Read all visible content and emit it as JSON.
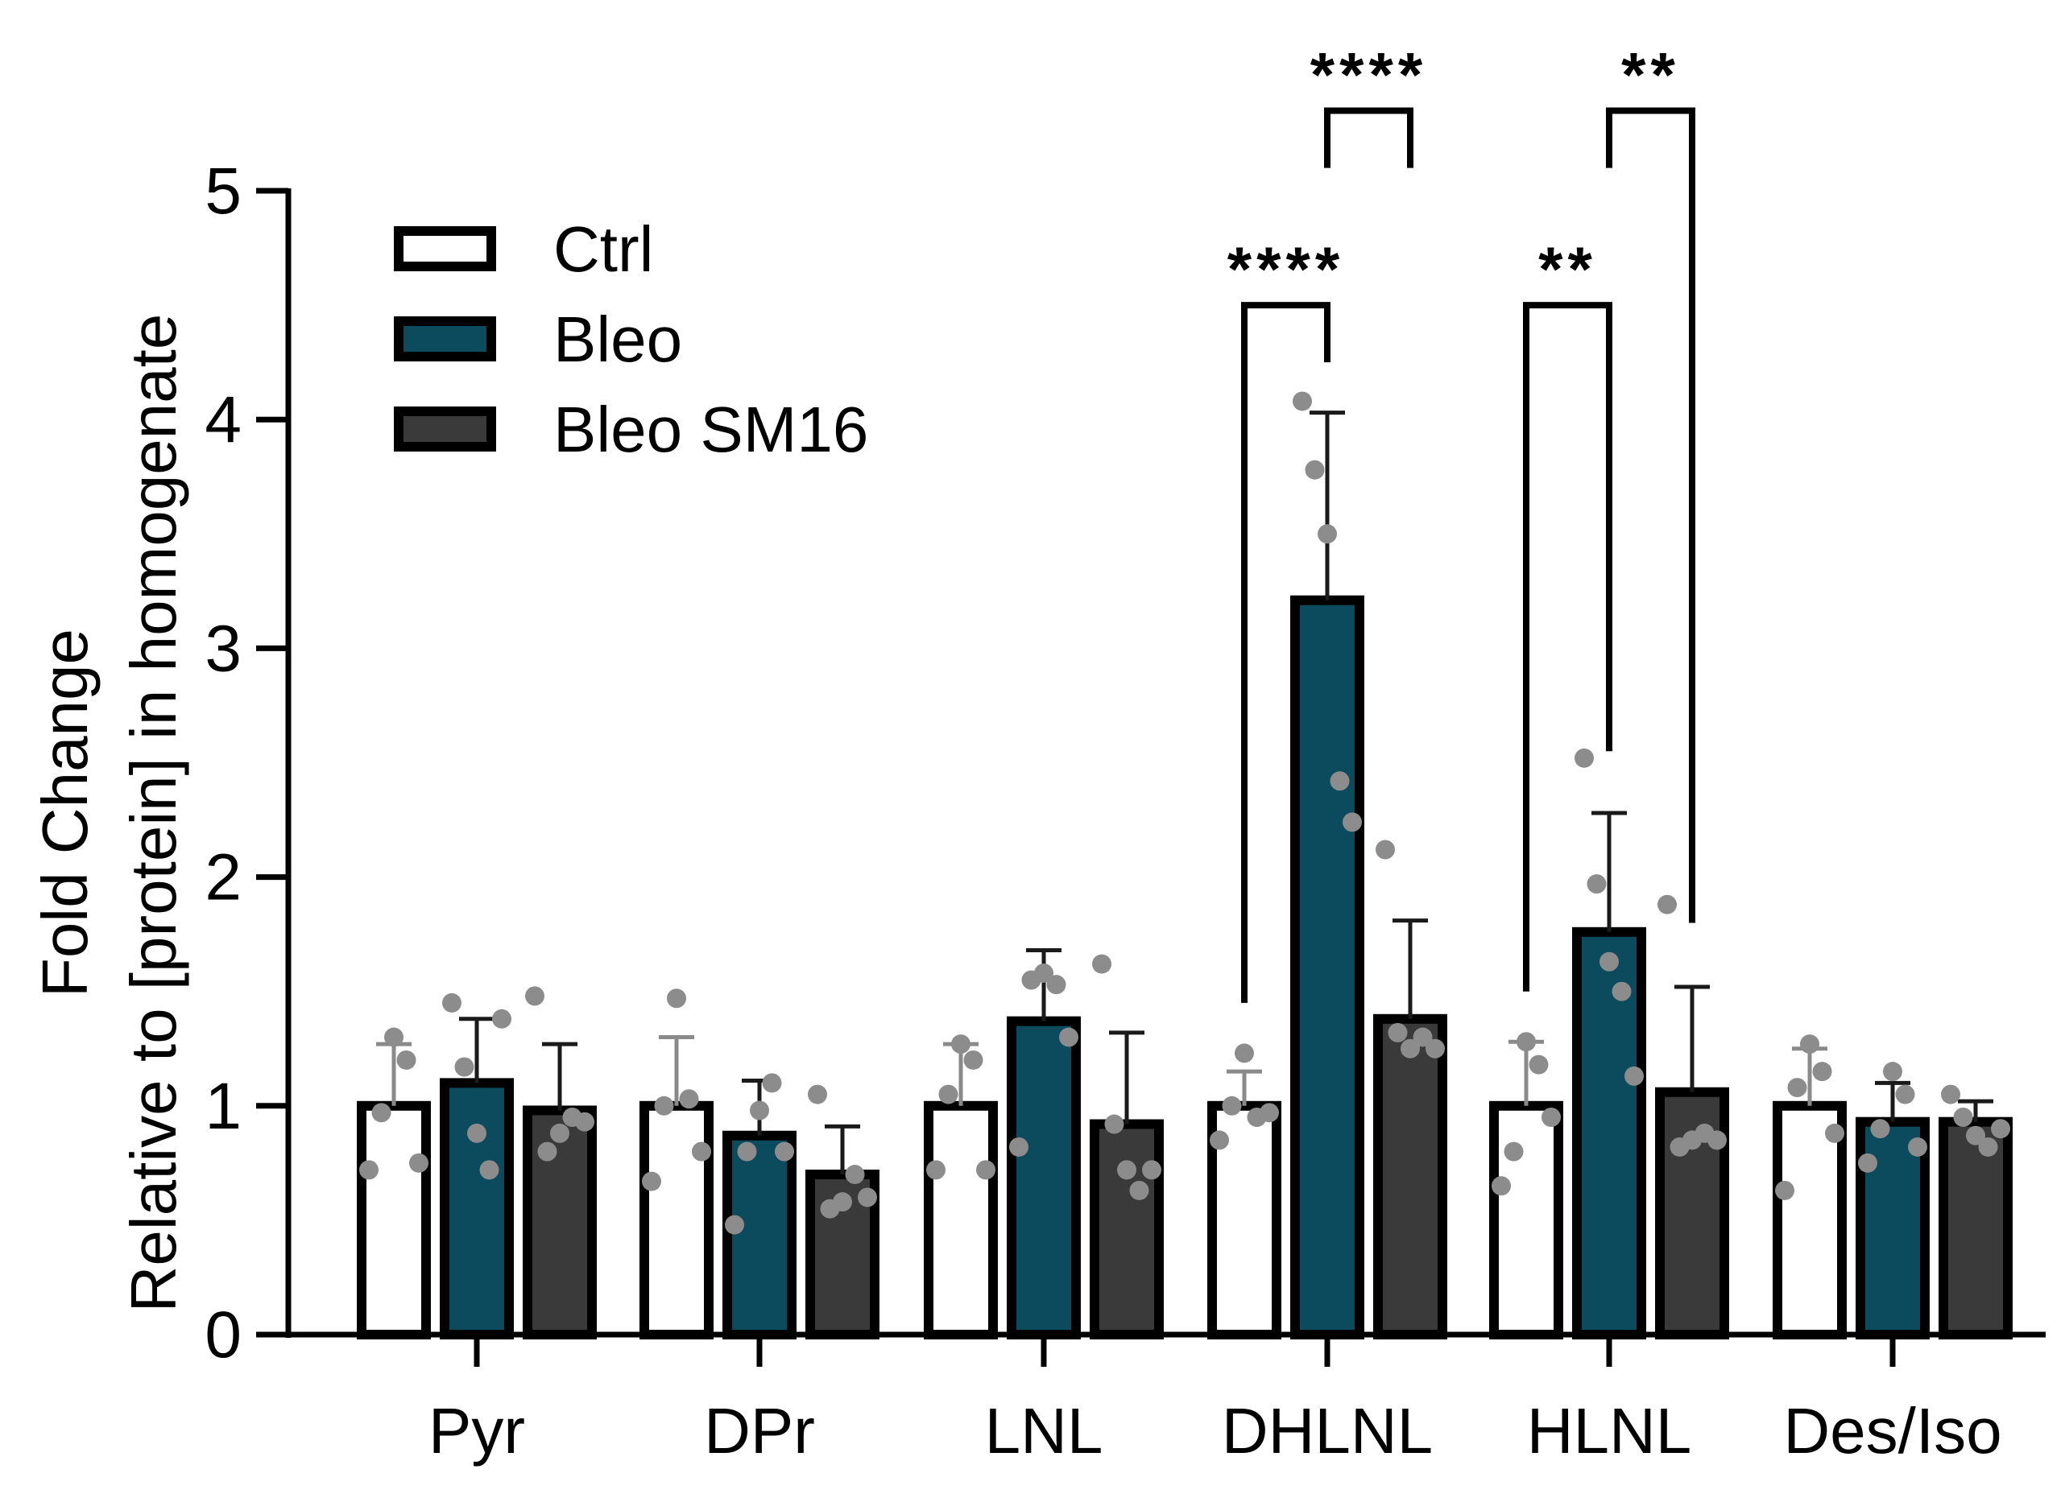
{
  "chart_data": {
    "type": "bar",
    "title": "",
    "xlabel": "",
    "ylabel_line1": "Fold  Change",
    "ylabel_line2": "Relative to [protein] in homogenate",
    "ylim": [
      0,
      5
    ],
    "yticks": [
      0,
      1,
      2,
      3,
      4,
      5
    ],
    "ytick_labels": [
      "0",
      "1",
      "2",
      "3",
      "4",
      "5"
    ],
    "categories": [
      "Pyr",
      "DPr",
      "LNL",
      "DHLNL",
      "HLNL",
      "Des/Iso"
    ],
    "legend_position": "top-left",
    "series": [
      {
        "name": "Ctrl",
        "color": "#ffffff",
        "values": [
          1.0,
          1.0,
          1.0,
          1.0,
          1.0,
          1.0
        ],
        "errors": [
          0.27,
          0.3,
          0.27,
          0.15,
          0.28,
          0.25
        ],
        "points": [
          [
            0.72,
            0.97,
            1.3,
            1.2,
            0.75
          ],
          [
            0.67,
            1.0,
            1.47,
            1.03,
            0.8
          ],
          [
            0.72,
            1.05,
            1.27,
            1.2,
            0.72
          ],
          [
            0.85,
            1.0,
            1.23,
            0.95,
            0.97
          ],
          [
            0.65,
            0.8,
            1.28,
            1.18,
            0.95
          ],
          [
            0.63,
            1.08,
            1.27,
            1.15,
            0.88
          ]
        ]
      },
      {
        "name": "Bleo",
        "color": "#0c4a5e",
        "values": [
          1.1,
          0.87,
          1.37,
          3.21,
          1.76,
          0.93
        ],
        "errors": [
          0.28,
          0.24,
          0.31,
          0.82,
          0.52,
          0.17
        ],
        "points": [
          [
            1.45,
            1.17,
            0.88,
            0.72,
            1.38
          ],
          [
            0.48,
            0.8,
            0.98,
            1.1,
            0.8
          ],
          [
            0.82,
            1.55,
            1.58,
            1.53,
            1.3
          ],
          [
            4.08,
            3.78,
            3.5,
            2.42,
            2.24
          ],
          [
            2.52,
            1.97,
            1.63,
            1.5,
            1.13
          ],
          [
            0.75,
            0.9,
            1.15,
            1.05,
            0.82
          ]
        ]
      },
      {
        "name": "Bleo SM16",
        "color": "#3a3a3a",
        "values": [
          0.98,
          0.7,
          0.92,
          1.38,
          1.06,
          0.93
        ],
        "errors": [
          0.29,
          0.21,
          0.4,
          0.43,
          0.46,
          0.09
        ],
        "points": [
          [
            1.48,
            0.8,
            0.88,
            0.95,
            0.93
          ],
          [
            1.05,
            0.55,
            0.58,
            0.7,
            0.6
          ],
          [
            1.62,
            0.92,
            0.72,
            0.63,
            0.72
          ],
          [
            2.12,
            1.32,
            1.25,
            1.3,
            1.25
          ],
          [
            1.88,
            0.82,
            0.85,
            0.88,
            0.85
          ],
          [
            1.05,
            0.95,
            0.87,
            0.82,
            0.9
          ]
        ]
      }
    ],
    "significance": [
      {
        "category": "DHLNL",
        "from_series": 0,
        "to_series": 1,
        "label": "****",
        "level": 4.5,
        "left_drop": 1.45,
        "right_drop": 4.25
      },
      {
        "category": "DHLNL",
        "from_series": 1,
        "to_series": 2,
        "label": "****",
        "level": 5.35,
        "left_drop": 5.1,
        "right_drop": 5.1
      },
      {
        "category": "HLNL",
        "from_series": 0,
        "to_series": 1,
        "label": "**",
        "level": 4.5,
        "left_drop": 1.5,
        "right_drop": 2.55
      },
      {
        "category": "HLNL",
        "from_series": 1,
        "to_series": 2,
        "label": "**",
        "level": 5.35,
        "left_drop": 5.1,
        "right_drop": 1.8
      }
    ]
  }
}
